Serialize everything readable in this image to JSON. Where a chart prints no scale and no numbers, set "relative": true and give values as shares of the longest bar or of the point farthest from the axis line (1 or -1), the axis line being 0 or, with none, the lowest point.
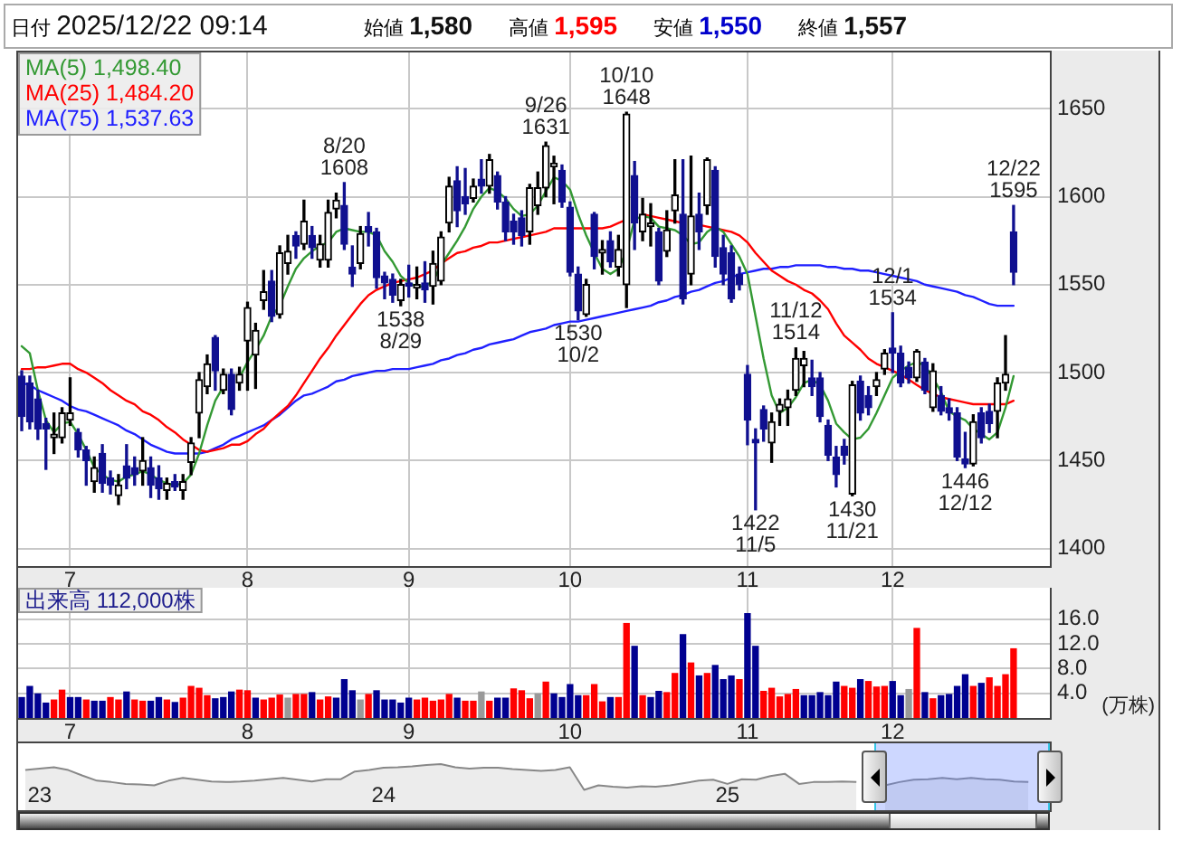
{
  "chart_data": [
    {
      "type": "candlestick",
      "title": "日付 2025/12/22 09:14",
      "categories": [
        null,
        null,
        null,
        null,
        null,
        null,
        "7",
        null,
        null,
        null,
        null,
        null,
        null,
        null,
        null,
        null,
        null,
        null,
        null,
        null,
        null,
        null,
        null,
        null,
        null,
        null,
        null,
        null,
        "8",
        null,
        null,
        null,
        null,
        null,
        null,
        null,
        null,
        null,
        null,
        null,
        null,
        null,
        null,
        null,
        null,
        null,
        null,
        null,
        "9",
        null,
        null,
        null,
        null,
        null,
        null,
        null,
        null,
        null,
        null,
        null,
        null,
        null,
        null,
        null,
        null,
        null,
        null,
        null,
        "10",
        null,
        null,
        null,
        null,
        null,
        null,
        null,
        null,
        null,
        null,
        null,
        null,
        null,
        null,
        null,
        null,
        null,
        null,
        null,
        null,
        null,
        "11",
        null,
        null,
        null,
        null,
        null,
        null,
        null,
        null,
        null,
        null,
        null,
        null,
        null,
        null,
        null,
        null,
        null,
        "12",
        null,
        null,
        null,
        null,
        null,
        null,
        null,
        null,
        null,
        null,
        null,
        null,
        null,
        null,
        null
      ],
      "ohlc": [
        [
          1498,
          1501,
          1467,
          1475
        ],
        [
          1494,
          1498,
          1468,
          1472
        ],
        [
          1485,
          1490,
          1462,
          1468
        ],
        [
          1471,
          1474,
          1445,
          1468
        ],
        [
          1463,
          1477,
          1454,
          1465
        ],
        [
          1463,
          1480,
          1460,
          1477
        ],
        [
          1473,
          1497,
          1470,
          1477
        ],
        [
          1466,
          1468,
          1452,
          1456
        ],
        [
          1456,
          1458,
          1436,
          1450
        ],
        [
          1438,
          1452,
          1432,
          1446
        ],
        [
          1454,
          1459,
          1432,
          1437
        ],
        [
          1440,
          1444,
          1431,
          1436
        ],
        [
          1430,
          1442,
          1425,
          1436
        ],
        [
          1447,
          1459,
          1434,
          1440
        ],
        [
          1446,
          1452,
          1436,
          1442
        ],
        [
          1444,
          1463,
          1436,
          1450
        ],
        [
          1446,
          1452,
          1429,
          1436
        ],
        [
          1440,
          1447,
          1428,
          1434
        ],
        [
          1433,
          1440,
          1428,
          1437
        ],
        [
          1438,
          1442,
          1433,
          1435
        ],
        [
          1433,
          1442,
          1428,
          1438
        ],
        [
          1449,
          1463,
          1442,
          1460
        ],
        [
          1477,
          1500,
          1463,
          1496
        ],
        [
          1492,
          1510,
          1488,
          1505
        ],
        [
          1520,
          1521,
          1490,
          1501
        ],
        [
          1490,
          1502,
          1488,
          1499
        ],
        [
          1499,
          1502,
          1476,
          1479
        ],
        [
          1494,
          1503,
          1490,
          1499
        ],
        [
          1518,
          1540,
          1490,
          1537
        ],
        [
          1510,
          1528,
          1491,
          1524
        ],
        [
          1541,
          1558,
          1536,
          1546
        ],
        [
          1552,
          1558,
          1529,
          1532
        ],
        [
          1533,
          1572,
          1531,
          1568
        ],
        [
          1562,
          1578,
          1556,
          1569
        ],
        [
          1578,
          1580,
          1565,
          1572
        ],
        [
          1573,
          1598,
          1570,
          1586
        ],
        [
          1578,
          1583,
          1565,
          1571
        ],
        [
          1564,
          1578,
          1560,
          1573
        ],
        [
          1564,
          1598,
          1560,
          1591
        ],
        [
          1593,
          1602,
          1588,
          1598
        ],
        [
          1595,
          1608,
          1570,
          1573
        ],
        [
          1560,
          1572,
          1549,
          1556
        ],
        [
          1562,
          1583,
          1559,
          1579
        ],
        [
          1583,
          1591,
          1572,
          1580
        ],
        [
          1580,
          1582,
          1548,
          1554
        ],
        [
          1555,
          1557,
          1542,
          1551
        ],
        [
          1553,
          1556,
          1540,
          1544
        ],
        [
          1541,
          1553,
          1538,
          1550
        ],
        [
          1551,
          1561,
          1543,
          1549
        ],
        [
          1548,
          1560,
          1542,
          1550
        ],
        [
          1551,
          1563,
          1540,
          1547
        ],
        [
          1549,
          1569,
          1539,
          1562
        ],
        [
          1552,
          1580,
          1550,
          1577
        ],
        [
          1585,
          1611,
          1580,
          1606
        ],
        [
          1609,
          1617,
          1583,
          1592
        ],
        [
          1600,
          1616,
          1590,
          1596
        ],
        [
          1599,
          1610,
          1597,
          1606
        ],
        [
          1610,
          1621,
          1602,
          1606
        ],
        [
          1606,
          1624,
          1602,
          1621
        ],
        [
          1612,
          1614,
          1593,
          1597
        ],
        [
          1597,
          1600,
          1575,
          1580
        ],
        [
          1586,
          1590,
          1573,
          1580
        ],
        [
          1588,
          1592,
          1572,
          1578
        ],
        [
          1580,
          1607,
          1573,
          1605
        ],
        [
          1595,
          1614,
          1590,
          1605
        ],
        [
          1605,
          1631,
          1600,
          1629
        ],
        [
          1617,
          1623,
          1596,
          1619
        ],
        [
          1615,
          1618,
          1594,
          1597
        ],
        [
          1594,
          1597,
          1555,
          1557
        ],
        [
          1556,
          1560,
          1530,
          1535
        ],
        [
          1533,
          1553,
          1532,
          1550
        ],
        [
          1590,
          1591,
          1559,
          1566
        ],
        [
          1568,
          1575,
          1556,
          1570
        ],
        [
          1575,
          1580,
          1560,
          1563
        ],
        [
          1560,
          1578,
          1555,
          1570
        ],
        [
          1550,
          1648,
          1537,
          1647
        ],
        [
          1612,
          1620,
          1570,
          1585
        ],
        [
          1580,
          1599,
          1575,
          1590
        ],
        [
          1583,
          1596,
          1572,
          1585
        ],
        [
          1580,
          1582,
          1550,
          1552
        ],
        [
          1569,
          1592,
          1566,
          1581
        ],
        [
          1592,
          1621,
          1585,
          1601
        ],
        [
          1590,
          1621,
          1539,
          1542
        ],
        [
          1556,
          1623,
          1550,
          1589
        ],
        [
          1590,
          1602,
          1570,
          1580
        ],
        [
          1595,
          1622,
          1590,
          1621
        ],
        [
          1615,
          1617,
          1560,
          1566
        ],
        [
          1571,
          1578,
          1550,
          1556
        ],
        [
          1568,
          1572,
          1540,
          1542
        ],
        [
          1556,
          1560,
          1547,
          1550
        ],
        [
          1499,
          1504,
          1459,
          1473
        ],
        [
          1462,
          1468,
          1422,
          1460
        ],
        [
          1479,
          1481,
          1461,
          1468
        ],
        [
          1460,
          1477,
          1449,
          1472
        ],
        [
          1478,
          1485,
          1470,
          1482
        ],
        [
          1480,
          1490,
          1470,
          1485
        ],
        [
          1490,
          1514,
          1487,
          1508
        ],
        [
          1504,
          1512,
          1492,
          1508
        ],
        [
          1497,
          1507,
          1487,
          1492
        ],
        [
          1497,
          1500,
          1472,
          1475
        ],
        [
          1470,
          1473,
          1450,
          1453
        ],
        [
          1452,
          1458,
          1435,
          1442
        ],
        [
          1458,
          1462,
          1448,
          1453
        ],
        [
          1431,
          1495,
          1430,
          1493
        ],
        [
          1495,
          1498,
          1473,
          1477
        ],
        [
          1487,
          1492,
          1476,
          1480
        ],
        [
          1492,
          1500,
          1487,
          1496
        ],
        [
          1502,
          1513,
          1499,
          1511
        ],
        [
          1514,
          1534,
          1500,
          1511
        ],
        [
          1511,
          1515,
          1492,
          1494
        ],
        [
          1503,
          1506,
          1494,
          1497
        ],
        [
          1497,
          1513,
          1495,
          1512
        ],
        [
          1506,
          1508,
          1488,
          1490
        ],
        [
          1480,
          1505,
          1478,
          1501
        ],
        [
          1487,
          1492,
          1476,
          1478
        ],
        [
          1480,
          1485,
          1473,
          1477
        ],
        [
          1477,
          1480,
          1450,
          1452
        ],
        [
          1451,
          1466,
          1446,
          1448
        ],
        [
          1448,
          1476,
          1447,
          1472
        ],
        [
          1477,
          1480,
          1460,
          1463
        ],
        [
          1478,
          1482,
          1466,
          1471
        ],
        [
          1478,
          1497,
          1463,
          1494
        ],
        [
          1494,
          1521,
          1490,
          1499
        ],
        [
          1580,
          1595,
          1550,
          1557
        ]
      ],
      "colors": [
        "#101090",
        "#101090",
        "#101090",
        "#101090",
        "#000000",
        "#000000",
        "#000000",
        "#101090",
        "#101090",
        "#000000",
        "#101090",
        "#101090",
        "#000000",
        "#101090",
        "#101090",
        "#000000",
        "#101090",
        "#101090",
        "#000000",
        "#101090",
        "#000000",
        "#000000",
        "#000000",
        "#000000",
        "#101090",
        "#000000",
        "#101090",
        "#000000",
        "#000000",
        "#000000",
        "#000000",
        "#101090",
        "#000000",
        "#000000",
        "#101090",
        "#000000",
        "#101090",
        "#000000",
        "#000000",
        "#000000",
        "#101090",
        "#101090",
        "#000000",
        "#101090",
        "#101090",
        "#101090",
        "#101090",
        "#000000",
        "#101090",
        "#000000",
        "#101090",
        "#000000",
        "#000000",
        "#000000",
        "#101090",
        "#101090",
        "#000000",
        "#101090",
        "#000000",
        "#101090",
        "#101090",
        "#101090",
        "#101090",
        "#000000",
        "#000000",
        "#000000",
        "#000000",
        "#101090",
        "#101090",
        "#101090",
        "#000000",
        "#101090",
        "#000000",
        "#101090",
        "#000000",
        "#000000",
        "#101090",
        "#000000",
        "#000000",
        "#101090",
        "#000000",
        "#000000",
        "#101090",
        "#000000",
        "#101090",
        "#000000",
        "#101090",
        "#101090",
        "#101090",
        "#101090",
        "#101090",
        "#101090",
        "#101090",
        "#000000",
        "#000000",
        "#000000",
        "#000000",
        "#000000",
        "#101090",
        "#101090",
        "#101090",
        "#101090",
        "#101090",
        "#000000",
        "#101090",
        "#101090",
        "#000000",
        "#000000",
        "#101090",
        "#101090",
        "#101090",
        "#000000",
        "#101090",
        "#000000",
        "#101090",
        "#101090",
        "#101090",
        "#101090",
        "#000000",
        "#101090",
        "#101090",
        "#000000",
        "#000000",
        "#101090"
      ],
      "series": [
        {
          "name": "MA(5) 1,498.40",
          "type": "line",
          "color": "#339933",
          "values": [
            1515,
            1511,
            1490,
            1473,
            1466,
            1471,
            1472,
            1465,
            1456,
            1446,
            1442,
            1439,
            1438,
            1441,
            1442,
            1444,
            1442,
            1439,
            1437,
            1436,
            1437,
            1442,
            1454,
            1470,
            1484,
            1492,
            null,
            1497,
            1506,
            1513,
            1521,
            1532,
            1538,
            1549,
            1559,
            1565,
            1569,
            1572,
            1574,
            1580,
            1582,
            1581,
            1580,
            1580,
            1578,
            1569,
            1563,
            1555,
            1551,
            1549,
            1549,
            1552,
            1561,
            1568,
            1575,
            1583,
            1593,
            1600,
            1605,
            1603,
            1599,
            1593,
            1589,
            1590,
            1595,
            1603,
            1611,
            1609,
            1604,
            1590,
            1578,
            1568,
            1559,
            1556,
            1559,
            1569,
            1587,
            1589,
            1588,
            1583,
            1582,
            1581,
            1578,
            1573,
            1574,
            1580,
            1583,
            1580,
            1573,
            1566,
            1556,
            1532,
            1508,
            1487,
            1477,
            1480,
            1486,
            1494,
            1496,
            1493,
            1484,
            1471,
            1466,
            1462,
            1463,
            1468,
            1477,
            1487,
            1497,
            1501,
            1504,
            1506,
            1504,
            1497,
            1489,
            1478,
            1475,
            1473,
            1468,
            1465,
            1462,
            1466,
            1480,
            1498
          ]
        },
        {
          "name": "MA(25) 1,484.20",
          "type": "line",
          "color": "#ff0000",
          "values": [
            1502,
            1502,
            1503,
            1503,
            1504,
            1505,
            1505,
            1502,
            1500,
            1497,
            1494,
            1490,
            1487,
            1484,
            1482,
            1478,
            1476,
            1473,
            1469,
            1466,
            1462,
            1459,
            1456,
            1455,
            1456,
            1457,
            1459,
            1459,
            1461,
            1465,
            1468,
            1473,
            1477,
            1481,
            1487,
            1494,
            1501,
            1508,
            1514,
            1521,
            1527,
            1533,
            1539,
            1544,
            1547,
            1549,
            1551,
            1552,
            1553,
            1554,
            1556,
            1558,
            1562,
            1565,
            1568,
            1569,
            1571,
            1572,
            1574,
            1574,
            1575,
            1576,
            1577,
            1578,
            1579,
            1580,
            1582,
            1582,
            1582,
            1582,
            1582,
            1582,
            1582,
            1583,
            1585,
            1587,
            null,
            1590,
            1589,
            1588,
            1587,
            1586,
            1585,
            null,
            1584,
            1583,
            1582,
            1581,
            1580,
            1578,
            1574,
            1568,
            1563,
            1558,
            1555,
            1552,
            1550,
            1547,
            1545,
            1541,
            1536,
            1528,
            1521,
            1517,
            1513,
            1508,
            1505,
            1503,
            1501,
            1499,
            1496,
            1493,
            1490,
            1488,
            1486,
            1485,
            1484,
            1483,
            1482,
            1482,
            1482,
            1482,
            1482,
            1484
          ]
        },
        {
          "name": "MA(75) 1,537.63",
          "type": "line",
          "color": "#2020ff",
          "values": [
            1494,
            1493,
            1490,
            1488,
            1486,
            1484,
            1481,
            1479,
            1478,
            1476,
            1474,
            1472,
            1470,
            1467,
            1465,
            1462,
            1459,
            1457,
            1455,
            1454,
            1454,
            1454,
            1454,
            1455,
            1457,
            1459,
            1462,
            1464,
            1466,
            1468,
            1470,
            1473,
            1476,
            1480,
            1484,
            1487,
            1488,
            1490,
            1492,
            1495,
            1496,
            1498,
            1499,
            1500,
            1501,
            1501,
            1502,
            1502,
            1502,
            1503,
            1504,
            1505,
            1507,
            1508,
            1510,
            1511,
            1513,
            1514,
            1516,
            1517,
            1518,
            1519,
            1521,
            1523,
            1524,
            1525,
            1527,
            1528,
            1529,
            1529,
            1530,
            1531,
            1532,
            1533,
            1534,
            1535,
            1536,
            1537,
            1538,
            1540,
            1541,
            1543,
            1544,
            1546,
            1547,
            1549,
            1551,
            1552,
            1554,
            1556,
            1557,
            1558,
            1559,
            1559,
            1560,
            1560,
            1561,
            1561,
            1561,
            1561,
            1560,
            1560,
            1559,
            1559,
            1558,
            1558,
            1557,
            1556,
            1555,
            1554,
            1553,
            1552,
            1550,
            1549,
            1548,
            1547,
            1546,
            1544,
            1543,
            1541,
            1539,
            1538,
            1538,
            1538
          ]
        }
      ],
      "ylim": [
        1390,
        1682
      ],
      "yticks": [
        1400,
        1450,
        1500,
        1550,
        1600,
        1650
      ],
      "grid": true,
      "legend": "top left",
      "annotations": [
        "始値 1,580",
        "高値 1,595",
        "安値 1,550",
        "終値 1,557",
        {
          "text": "8/20\n1608",
          "y": 1608
        },
        {
          "text": "1538\n8/29",
          "y": 1538
        },
        {
          "text": "9/26\n1631",
          "y": 1631
        },
        {
          "text": "1530\n10/2",
          "y": 1530
        },
        {
          "text": "10/10\n1648",
          "y": 1648
        },
        {
          "text": "1422\n11/5",
          "y": 1422
        },
        {
          "text": "11/12\n1514",
          "y": 1514
        },
        {
          "text": "1430\n11/21",
          "y": 1430
        },
        {
          "text": "12/1\n1534",
          "y": 1534
        },
        {
          "text": "1446\n12/12",
          "y": 1446
        },
        {
          "text": "12/22\n1595",
          "y": 1595
        }
      ]
    },
    {
      "type": "bar",
      "title": "出来高 112,000株",
      "ylabel": "(万株)",
      "categories": [
        null,
        null,
        null,
        null,
        null,
        null,
        "7",
        null,
        null,
        null,
        null,
        null,
        null,
        null,
        null,
        null,
        null,
        null,
        null,
        null,
        null,
        null,
        null,
        null,
        null,
        null,
        null,
        null,
        "8",
        null,
        null,
        null,
        null,
        null,
        null,
        null,
        null,
        null,
        null,
        null,
        null,
        null,
        null,
        null,
        null,
        null,
        null,
        null,
        "9",
        null,
        null,
        null,
        null,
        null,
        null,
        null,
        null,
        null,
        null,
        null,
        null,
        null,
        null,
        null,
        null,
        null,
        null,
        null,
        "10",
        null,
        null,
        null,
        null,
        null,
        null,
        null,
        null,
        null,
        null,
        null,
        null,
        null,
        null,
        null,
        null,
        null,
        null,
        null,
        null,
        null,
        "11",
        null,
        null,
        null,
        null,
        null,
        null,
        null,
        null,
        null,
        null,
        null,
        null,
        null,
        null,
        null,
        null,
        null,
        "12",
        null,
        null,
        null,
        null,
        null,
        null,
        null,
        null,
        null,
        null,
        null,
        null,
        null,
        null,
        null
      ],
      "values": [
        3.3,
        5.1,
        3.9,
        2.4,
        2.9,
        4.5,
        3.3,
        3.3,
        2.9,
        2.7,
        2.7,
        3.3,
        2.9,
        4.2,
        2.9,
        2.7,
        2.7,
        3.3,
        2.9,
        2.5,
        3.2,
        5.1,
        4.8,
        3.6,
        3.1,
        3.3,
        4.2,
        4.5,
        4.4,
        3.2,
        2.9,
        3.2,
        3.7,
        3.2,
        3.8,
        3.8,
        4.1,
        2.9,
        3.4,
        3.2,
        6.2,
        4.4,
        2.9,
        3.8,
        4.4,
        2.9,
        2.9,
        2.4,
        3.2,
        2.9,
        3.2,
        2.7,
        2.9,
        3.8,
        3.2,
        2.7,
        2.7,
        4.2,
        2.7,
        3.2,
        3.2,
        4.7,
        4.4,
        3.1,
        3.9,
        5.8,
        3.9,
        3.3,
        5.4,
        3.6,
        3.6,
        5.4,
        2.6,
        3.3,
        3.3,
        15.3,
        11.6,
        3.6,
        3.3,
        4.3,
        4.1,
        7.2,
        13.5,
        8.9,
        6.8,
        7.2,
        8.5,
        6.2,
        6.8,
        6.2,
        16.9,
        11.6,
        4.3,
        4.8,
        3.4,
        3.8,
        4.6,
        3.6,
        3.6,
        4.1,
        3.6,
        5.8,
        5.1,
        4.8,
        6.2,
        5.9,
        5.0,
        5.1,
        5.9,
        3.6,
        4.6,
        14.5,
        4.1,
        3.1,
        3.6,
        3.8,
        5.1,
        7.0,
        5.1,
        5.6,
        6.5,
        5.1,
        7.0,
        11.2
      ],
      "colors": [
        "#000090",
        "#000090",
        "#000090",
        "#000090",
        "#ff0000",
        "#ff0000",
        "#000090",
        "#000090",
        "#ff0000",
        "#000090",
        "#000090",
        "#ff0000",
        "#ff0000",
        "#000090",
        "#ff0000",
        "#ff0000",
        "#000090",
        "#000090",
        "#ff0000",
        "#000090",
        "#ff0000",
        "#ff0000",
        "#ff0000",
        "#ff0000",
        "#000090",
        "#000090",
        "#000090",
        "#ff0000",
        "#ff0000",
        "#000090",
        "#ff0000",
        "#ff0000",
        "#ff0000",
        "#999999",
        "#ff0000",
        "#ff0000",
        "#000090",
        "#ff0000",
        "#ff0000",
        "#000090",
        "#000090",
        "#000090",
        "#999999",
        "#ff0000",
        "#000090",
        "#000090",
        "#000090",
        "#000090",
        "#000090",
        "#ff0000",
        "#ff0000",
        "#ff0000",
        "#ff0000",
        "#ff0000",
        "#000090",
        "#ff0000",
        "#ff0000",
        "#999999",
        "#ff0000",
        "#000090",
        "#000090",
        "#ff0000",
        "#ff0000",
        "#ff0000",
        "#999999",
        "#ff0000",
        "#000090",
        "#000090",
        "#000090",
        "#000090",
        "#ff0000",
        "#ff0000",
        "#ff0000",
        "#000090",
        "#ff0000",
        "#ff0000",
        "#000090",
        "#ff0000",
        "#000090",
        "#000090",
        "#ff0000",
        "#ff0000",
        "#000090",
        "#ff0000",
        "#000090",
        "#ff0000",
        "#000090",
        "#000090",
        "#000090",
        "#ff0000",
        "#000090",
        "#000090",
        "#ff0000",
        "#ff0000",
        "#ff0000",
        "#ff0000",
        "#ff0000",
        "#000090",
        "#000090",
        "#000090",
        "#000090",
        "#000090",
        "#ff0000",
        "#ff0000",
        "#000090",
        "#ff0000",
        "#ff0000",
        "#ff0000",
        "#000090",
        "#000090",
        "#999999",
        "#ff0000",
        "#000090",
        "#ff0000",
        "#000090",
        "#000090",
        "#000090",
        "#000090",
        "#ff0000",
        "#000090",
        "#ff0000",
        "#ff0000",
        "#ff0000",
        "#ff0000"
      ],
      "ylim": [
        0,
        21.1
      ],
      "yticks": [
        {
          "value": 4,
          "label": "4.0"
        },
        {
          "value": 8,
          "label": "8.0"
        },
        {
          "value": 12,
          "label": "12.0"
        },
        {
          "value": 16,
          "label": "16.0"
        }
      ],
      "grid": true
    },
    {
      "type": "area",
      "relative": true,
      "color": "#888888",
      "categories": [
        null,
        "23",
        null,
        null,
        null,
        null,
        null,
        null,
        null,
        null,
        null,
        null,
        null,
        null,
        null,
        null,
        null,
        null,
        null,
        null,
        null,
        null,
        null,
        null,
        null,
        "24",
        null,
        null,
        null,
        null,
        null,
        null,
        null,
        null,
        null,
        null,
        null,
        null,
        null,
        null,
        null,
        null,
        null,
        null,
        null,
        null,
        null,
        null,
        null,
        "25",
        null,
        null,
        null,
        null,
        null,
        null,
        null,
        null,
        null,
        null,
        null,
        null,
        null,
        null,
        null,
        null,
        null,
        null,
        null,
        null,
        null,
        null
      ],
      "values": [
        0.87,
        0.9,
        0.93,
        0.87,
        0.75,
        0.64,
        0.61,
        0.57,
        0.56,
        0.54,
        0.64,
        0.7,
        0.66,
        0.62,
        0.61,
        0.62,
        0.64,
        0.67,
        0.7,
        0.66,
        0.62,
        0.67,
        0.67,
        0.84,
        0.87,
        0.92,
        0.93,
        0.95,
        0.98,
        1,
        0.93,
        0.9,
        0.92,
        0.92,
        0.89,
        0.87,
        0.85,
        0.87,
        0.93,
        0.44,
        0.54,
        0.51,
        0.49,
        0.52,
        0.51,
        0.54,
        0.59,
        0.64,
        0.66,
        0.57,
        0.67,
        0.66,
        0.74,
        0.79,
        0.57,
        0.61,
        0.61,
        0.62,
        0.61,
        null,
        0.54,
        0.61,
        0.66,
        0.67,
        0.7,
        0.67,
        0.7,
        0.67,
        0.66,
        0.62,
        0.61,
        null
      ]
    }
  ]
}
